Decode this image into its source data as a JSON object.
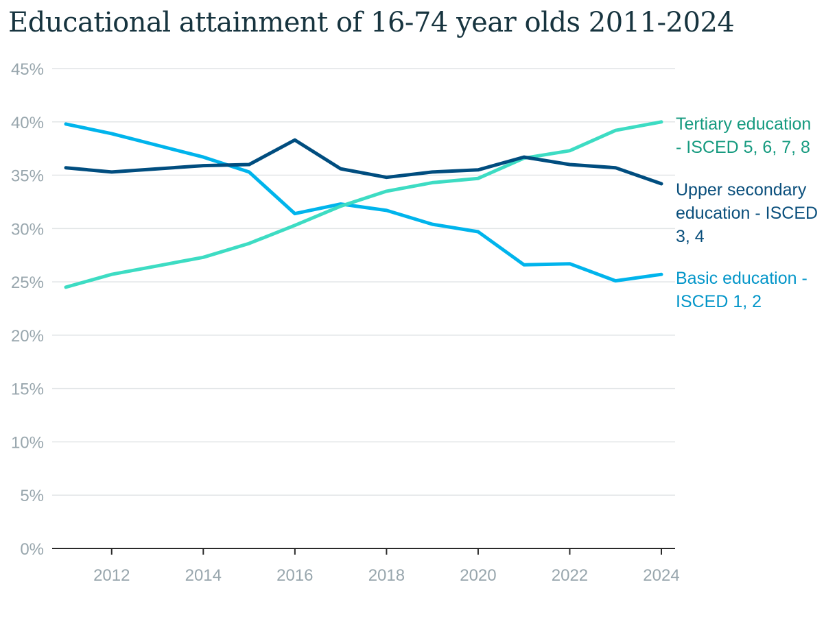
{
  "title": "Educational attainment of 16-74 year olds 2011-2024",
  "chart_data": {
    "type": "line",
    "x": [
      2011,
      2012,
      2013,
      2014,
      2015,
      2016,
      2017,
      2018,
      2019,
      2020,
      2021,
      2022,
      2023,
      2024
    ],
    "xlim": [
      2011,
      2024
    ],
    "x_ticks": [
      2012,
      2014,
      2016,
      2018,
      2020,
      2022,
      2024
    ],
    "ylim": [
      0,
      45
    ],
    "y_ticks": [
      0,
      5,
      10,
      15,
      20,
      25,
      30,
      35,
      40,
      45
    ],
    "y_tick_suffix": "%",
    "grid": true,
    "legend": "inline labels at right end of lines",
    "series": [
      {
        "name": "Tertiary education - ISCED 5, 6, 7, 8",
        "label_lines": [
          "Tertiary education",
          "- ISCED 5, 6, 7, 8"
        ],
        "color": "#3ddcc3",
        "label_color": "#159a7f",
        "values": [
          24.5,
          25.7,
          26.5,
          27.3,
          28.6,
          30.3,
          32.1,
          33.5,
          34.3,
          34.7,
          36.6,
          37.3,
          39.2,
          40.0
        ]
      },
      {
        "name": "Upper secondary education - ISCED 3, 4",
        "label_lines": [
          "Upper secondary",
          "education - ISCED",
          "3, 4"
        ],
        "color": "#004d7f",
        "label_color": "#0a4f7c",
        "values": [
          35.7,
          35.3,
          35.6,
          35.9,
          36.0,
          38.3,
          35.6,
          34.8,
          35.3,
          35.5,
          36.7,
          36.0,
          35.7,
          34.2
        ]
      },
      {
        "name": "Basic education - ISCED 1, 2",
        "label_lines": [
          "Basic education -",
          "ISCED 1, 2"
        ],
        "color": "#00b4ec",
        "label_color": "#0496c9",
        "values": [
          39.8,
          38.9,
          37.8,
          36.7,
          35.3,
          31.4,
          32.3,
          31.7,
          30.4,
          29.7,
          26.6,
          26.7,
          25.1,
          25.7
        ]
      }
    ]
  }
}
